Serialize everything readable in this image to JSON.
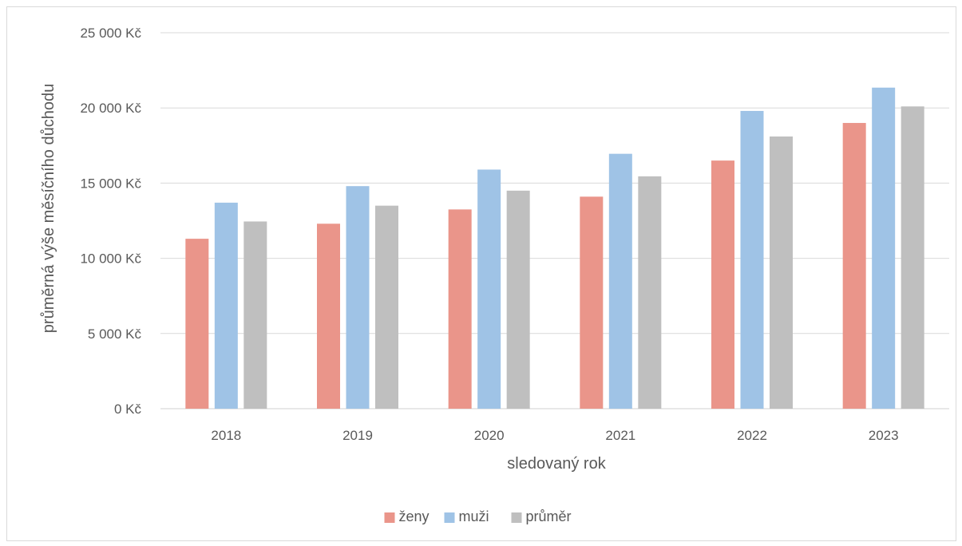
{
  "chart_data": {
    "type": "bar",
    "title": "",
    "xlabel": "sledovaný rok",
    "ylabel": "průměrná výše měsíčního důchodu",
    "categories": [
      "2018",
      "2019",
      "2020",
      "2021",
      "2022",
      "2023"
    ],
    "series": [
      {
        "name": "ženy",
        "color": "#ea958a",
        "values": [
          11300,
          12300,
          13250,
          14100,
          16500,
          19000
        ]
      },
      {
        "name": "muži",
        "color": "#9fc3e6",
        "values": [
          13700,
          14800,
          15900,
          16950,
          19800,
          21350
        ]
      },
      {
        "name": "průměr",
        "color": "#bfbfbf",
        "values": [
          12450,
          13500,
          14500,
          15450,
          18100,
          20100
        ]
      }
    ],
    "ylim": [
      0,
      25000
    ],
    "yticks": [
      0,
      5000,
      10000,
      15000,
      20000,
      25000
    ],
    "ytick_labels": [
      "0 Kč",
      "5 000 Kč",
      "10 000 Kč",
      "15 000 Kč",
      "20 000 Kč",
      "25 000 Kč"
    ],
    "grid": true,
    "legend_position": "bottom",
    "gridline_color": "#d9d9d9"
  }
}
